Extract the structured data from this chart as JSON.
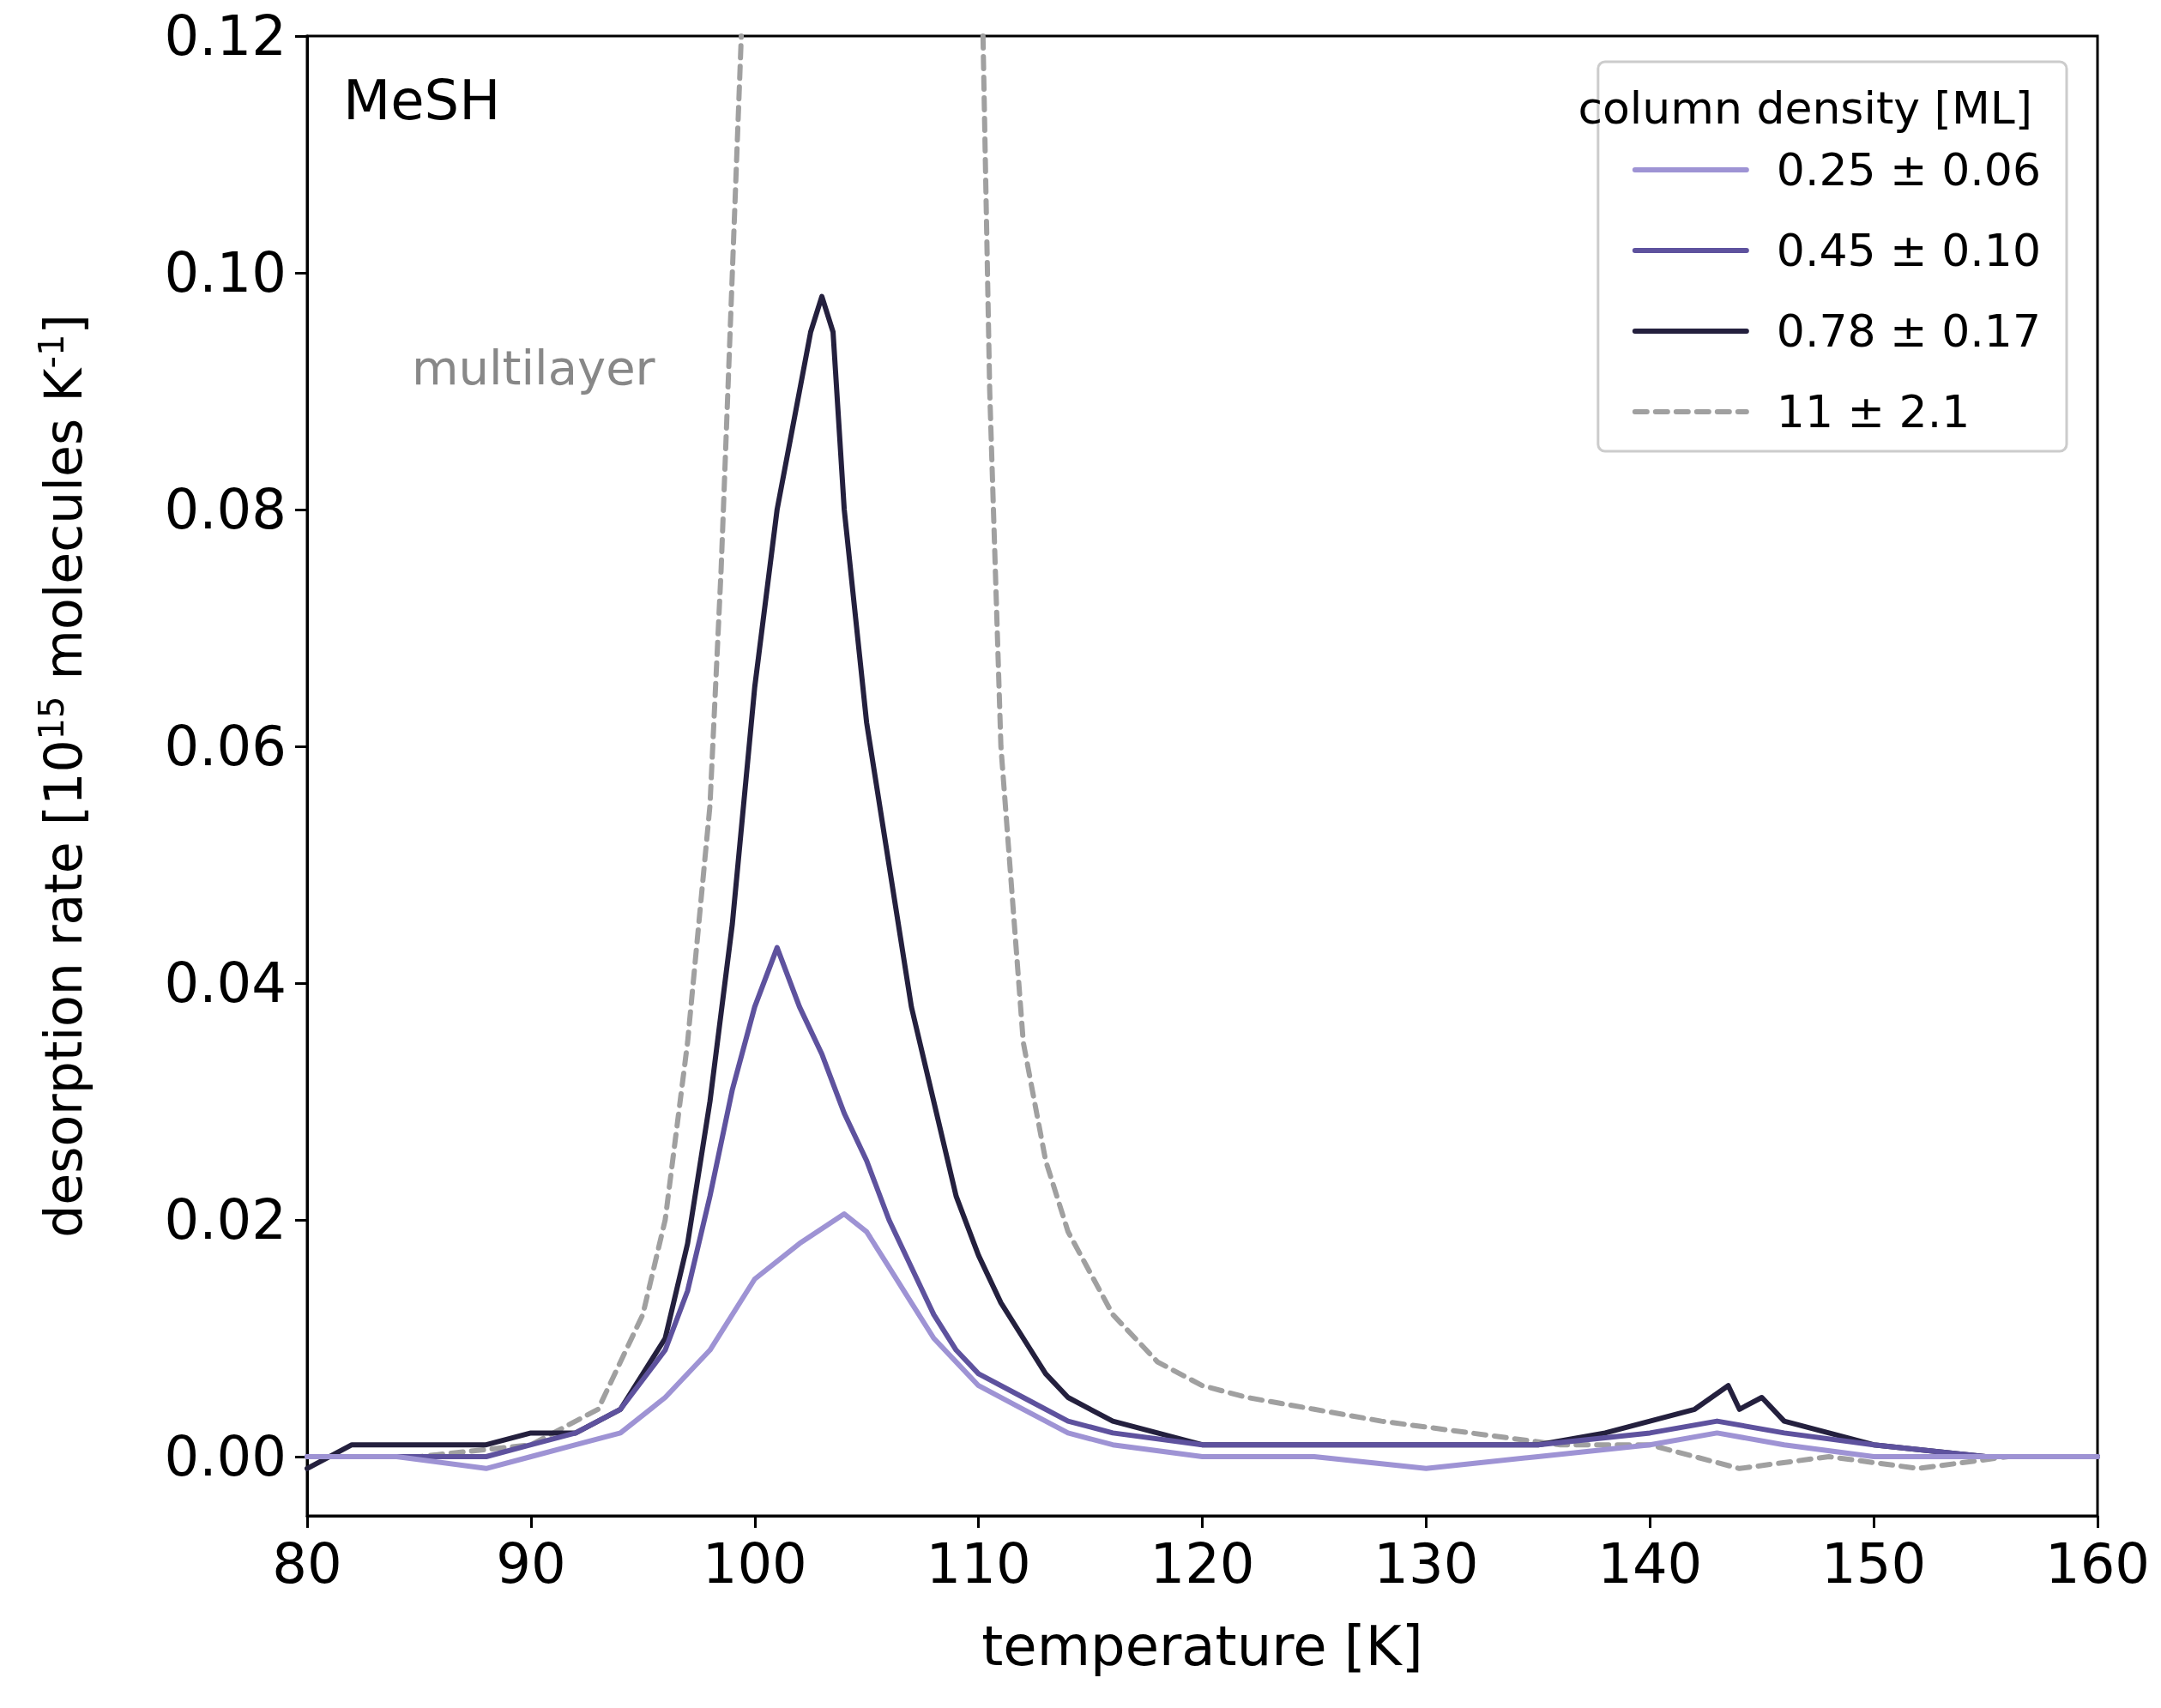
{
  "chart_data": {
    "type": "line",
    "xlabel": "temperature [K]",
    "ylabel": "desorption rate [10$^{15}$ molecules K$^{-1}$]",
    "legend_title": "column density [ML]",
    "annotations": [
      "MeSH",
      "multilayer"
    ],
    "xlim": [
      80,
      160
    ],
    "xticks": [
      80,
      90,
      100,
      110,
      120,
      130,
      140,
      150,
      160
    ],
    "ylim": [
      -0.005,
      0.12
    ],
    "yticks": [
      {
        "value": 0,
        "label": "0.00"
      },
      {
        "value": 0.02,
        "label": "0.02"
      },
      {
        "value": 0.04,
        "label": "0.04"
      },
      {
        "value": 0.06,
        "label": "0.06"
      },
      {
        "value": 0.08,
        "label": "0.08"
      },
      {
        "value": 0.1,
        "label": "0.10"
      },
      {
        "value": 0.12,
        "label": "0.12"
      }
    ],
    "grid": false,
    "legend": "top right",
    "marker": "none",
    "line_style": "solid",
    "series": [
      {
        "name": "0.25 ± 0.06",
        "color": "#9e93d4",
        "x": [
          80,
          84,
          88,
          90,
          92,
          94,
          96,
          98,
          100,
          102,
          104,
          105,
          106,
          107,
          108,
          109,
          110,
          112,
          114,
          116,
          120,
          125,
          130,
          135,
          140,
          143,
          146,
          150,
          155,
          160
        ],
        "values": [
          0,
          0,
          -0.001,
          0,
          0.001,
          0.002,
          0.005,
          0.009,
          0.015,
          0.018,
          0.0205,
          0.019,
          0.016,
          0.013,
          0.01,
          0.008,
          0.006,
          0.004,
          0.002,
          0.001,
          0,
          0,
          -0.001,
          0,
          0.001,
          0.002,
          0.001,
          0,
          0,
          0
        ]
      },
      {
        "name": "0.45 ± 0.10",
        "color": "#5e529e",
        "x": [
          80,
          84,
          88,
          90,
          92,
          94,
          96,
          97,
          98,
          99,
          100,
          101,
          102,
          103,
          104,
          105,
          106,
          107,
          108,
          109,
          110,
          112,
          114,
          116,
          120,
          125,
          130,
          135,
          140,
          143,
          146,
          150,
          155,
          160
        ],
        "values": [
          0,
          0,
          0,
          0.001,
          0.002,
          0.004,
          0.009,
          0.014,
          0.022,
          0.031,
          0.038,
          0.043,
          0.038,
          0.034,
          0.029,
          0.025,
          0.02,
          0.016,
          0.012,
          0.009,
          0.007,
          0.005,
          0.003,
          0.002,
          0.001,
          0.001,
          0.001,
          0.001,
          0.002,
          0.003,
          0.002,
          0.001,
          0,
          0
        ]
      },
      {
        "name": "0.78 ± 0.17",
        "color": "#24203e",
        "x": [
          80,
          82,
          85,
          88,
          90,
          92,
          94,
          96,
          97,
          98,
          99,
          100,
          101,
          102,
          102.5,
          103,
          103.5,
          104,
          105,
          106,
          107,
          108,
          109,
          110,
          111,
          112,
          113,
          114,
          115,
          116,
          118,
          120,
          125,
          130,
          135,
          138,
          140,
          142,
          143.5,
          144,
          145,
          146,
          148,
          150,
          155,
          160
        ],
        "values": [
          -0.001,
          0.001,
          0.001,
          0.001,
          0.002,
          0.002,
          0.004,
          0.01,
          0.018,
          0.03,
          0.045,
          0.065,
          0.08,
          0.09,
          0.095,
          0.098,
          0.095,
          0.08,
          0.062,
          0.05,
          0.038,
          0.03,
          0.022,
          0.017,
          0.013,
          0.01,
          0.007,
          0.005,
          0.004,
          0.003,
          0.002,
          0.001,
          0.001,
          0.001,
          0.001,
          0.002,
          0.003,
          0.004,
          0.006,
          0.004,
          0.005,
          0.003,
          0.002,
          0.001,
          0,
          0
        ]
      },
      {
        "name": "11 ± 2.1",
        "color": "#a0a0a0",
        "line_style": "dashed",
        "x": [
          80,
          85,
          90,
          93,
          95,
          96,
          97,
          98,
          98.5,
          99,
          99.4,
          105,
          110.2,
          110.5,
          111,
          112,
          113,
          114,
          116,
          118,
          120,
          122,
          125,
          128,
          132,
          136,
          140,
          144,
          148,
          152,
          156,
          160
        ],
        "values": [
          0,
          0,
          0.001,
          0.004,
          0.012,
          0.02,
          0.035,
          0.055,
          0.075,
          0.1,
          0.12,
          null,
          0.12,
          0.09,
          0.06,
          0.035,
          0.025,
          0.019,
          0.012,
          0.008,
          0.006,
          0.005,
          0.004,
          0.003,
          0.002,
          0.001,
          0.001,
          -0.001,
          0,
          -0.001,
          0,
          0
        ]
      }
    ]
  }
}
